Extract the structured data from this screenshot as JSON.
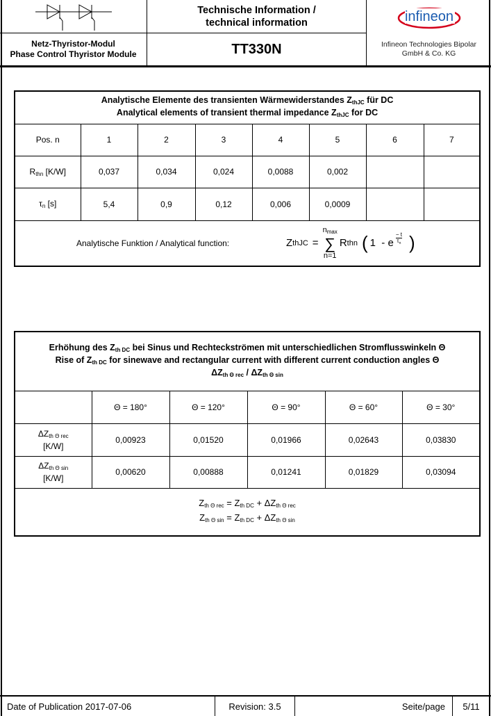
{
  "header": {
    "title_line1": "Technische Information /",
    "title_line2": "technical information",
    "module_de": "Netz-Thyristor-Modul",
    "module_en": "Phase Control Thyristor Module",
    "part_number": "TT330N",
    "logo_text": "infineon",
    "company_line1": "Infineon Technologies Bipolar",
    "company_line2": "GmbH & Co. KG",
    "brand_color": "#d4001a",
    "logo_text_color": "#1a5bb0"
  },
  "table1": {
    "title_de_pre": "Analytische Elemente des transienten Wärmewiderstandes Z",
    "title_de_sub": "thJC",
    "title_de_post": " für DC",
    "title_en_pre": "Analytical elements of transient thermal impedance Z",
    "title_en_sub": "thJC",
    "title_en_post": " for DC",
    "pos_label": "Pos. n",
    "positions": [
      "1",
      "2",
      "3",
      "4",
      "5",
      "6",
      "7"
    ],
    "r_label": "R",
    "r_sub": "thn",
    "r_unit": " [K/W]",
    "r_values": [
      "0,037",
      "0,034",
      "0,024",
      "0,0088",
      "0,002",
      "",
      ""
    ],
    "tau_label": "τ",
    "tau_sub": "n",
    "tau_unit": " [s]",
    "tau_values": [
      "5,4",
      "0,9",
      "0,12",
      "0,006",
      "0,0009",
      "",
      ""
    ],
    "function_label": "Analytische Funktion / Analytical function:",
    "formula": {
      "lhs": "Z",
      "lhs_sub": "thJC",
      "eq": "=",
      "sum_top": "n",
      "sum_top_sub": "max",
      "sigma": "∑",
      "sum_bottom": "n=1",
      "term": "R",
      "term_sub": "thn",
      "one_minus": "1  - e",
      "exp_num": "− t",
      "exp_den": "τ",
      "exp_den_sub": "n"
    }
  },
  "table2": {
    "title1_pre": "Erhöhung des Z",
    "title1_sub": "th DC",
    "title1_post": " bei Sinus und Rechteckströmen mit unterschiedlichen Stromflusswinkeln Θ",
    "title2_pre": "Rise of Z",
    "title2_sub": "th DC",
    "title2_post": " for sinewave and rectangular current with different current conduction angles Θ",
    "title3_a": "ΔZ",
    "title3_a_sub": "th Θ rec",
    "title3_sep": " / ",
    "title3_b": "ΔZ",
    "title3_b_sub": "th Θ sin",
    "angles": [
      "Θ = 180°",
      "Θ = 120°",
      "Θ = 90°",
      "Θ = 60°",
      "Θ = 30°"
    ],
    "rows": [
      {
        "label": "ΔZ",
        "label_sub": "th Θ rec",
        "unit": "[K/W]",
        "values": [
          "0,00923",
          "0,01520",
          "0,01966",
          "0,02643",
          "0,03830"
        ]
      },
      {
        "label": "ΔZ",
        "label_sub": "th Θ sin",
        "unit": "[K/W]",
        "values": [
          "0,00620",
          "0,00888",
          "0,01241",
          "0,01829",
          "0,03094"
        ]
      }
    ],
    "eq1": {
      "a": "Z",
      "a_sub": "th Θ rec",
      "b": " = Z",
      "b_sub": "th DC",
      "c": " + ΔZ",
      "c_sub": "th Θ rec"
    },
    "eq2": {
      "a": "Z",
      "a_sub": "th Θ sin",
      "b": " = Z",
      "b_sub": "th DC",
      "c": " + ΔZ",
      "c_sub": "th Θ sin"
    }
  },
  "footer": {
    "date": "Date of Publication 2017-07-06",
    "revision": "Revision: 3.5",
    "page_label": "Seite/page",
    "page": "5/11"
  }
}
